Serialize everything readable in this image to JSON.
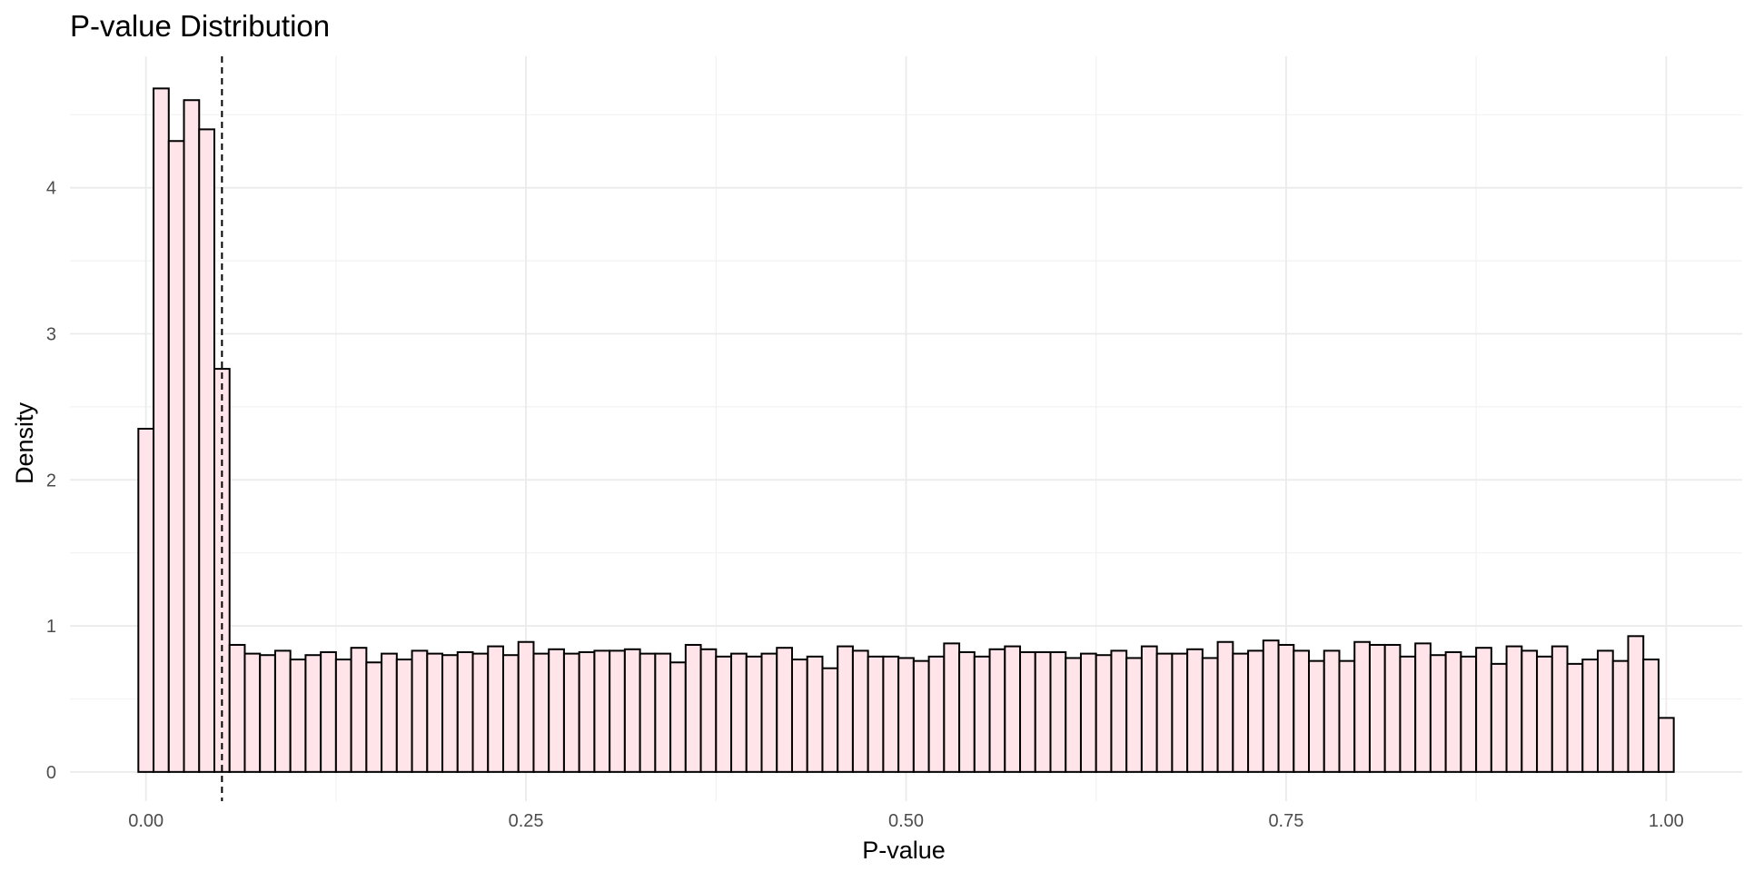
{
  "chart_data": {
    "type": "bar",
    "title": "P-value Distribution",
    "xlabel": "P-value",
    "ylabel": "Density",
    "xlim": [
      -0.05,
      1.05
    ],
    "ylim": [
      -0.2,
      4.9
    ],
    "bin_width": 0.01,
    "bin_start": -0.005,
    "x_ticks": [
      0.0,
      0.25,
      0.5,
      0.75,
      1.0
    ],
    "x_tick_labels": [
      "0.00",
      "0.25",
      "0.50",
      "0.75",
      "1.00"
    ],
    "y_ticks": [
      0,
      1,
      2,
      3,
      4
    ],
    "y_tick_labels": [
      "0",
      "1",
      "2",
      "3",
      "4"
    ],
    "x_minor_ticks": [
      0.125,
      0.375,
      0.625,
      0.875
    ],
    "y_minor_ticks": [
      0.5,
      1.5,
      2.5,
      3.5,
      4.5
    ],
    "grid": true,
    "reference_line": {
      "x": 0.05,
      "style": "dashed",
      "color": "#000000"
    },
    "bar_fill": "#ffe4e9",
    "bar_stroke": "#000000",
    "values": [
      2.35,
      4.68,
      4.32,
      4.6,
      4.4,
      2.76,
      0.87,
      0.81,
      0.8,
      0.83,
      0.77,
      0.8,
      0.82,
      0.77,
      0.85,
      0.75,
      0.81,
      0.77,
      0.83,
      0.81,
      0.8,
      0.82,
      0.81,
      0.86,
      0.8,
      0.89,
      0.81,
      0.84,
      0.81,
      0.82,
      0.83,
      0.83,
      0.84,
      0.81,
      0.81,
      0.75,
      0.87,
      0.84,
      0.79,
      0.81,
      0.79,
      0.81,
      0.85,
      0.77,
      0.79,
      0.71,
      0.86,
      0.83,
      0.79,
      0.79,
      0.78,
      0.76,
      0.79,
      0.88,
      0.82,
      0.79,
      0.84,
      0.86,
      0.82,
      0.82,
      0.82,
      0.78,
      0.81,
      0.8,
      0.83,
      0.78,
      0.86,
      0.81,
      0.81,
      0.84,
      0.78,
      0.89,
      0.81,
      0.83,
      0.9,
      0.87,
      0.83,
      0.76,
      0.83,
      0.76,
      0.89,
      0.87,
      0.87,
      0.79,
      0.88,
      0.8,
      0.82,
      0.79,
      0.85,
      0.74,
      0.86,
      0.83,
      0.79,
      0.86,
      0.74,
      0.77,
      0.83,
      0.76,
      0.93,
      0.77,
      0.37
    ]
  }
}
